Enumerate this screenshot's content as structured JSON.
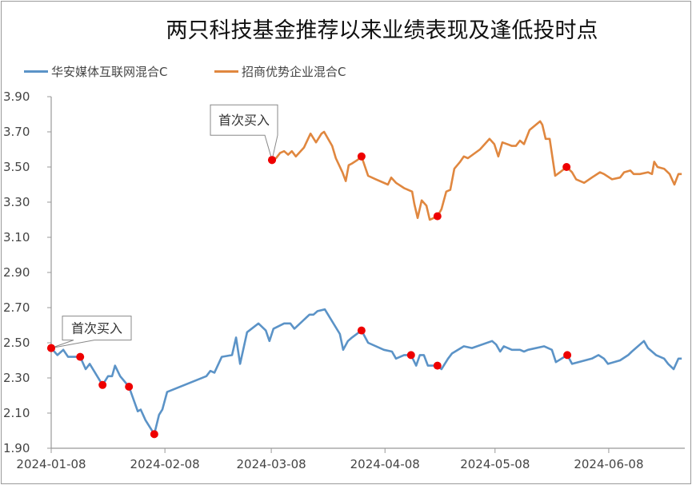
{
  "chart_data": {
    "type": "line",
    "title": "两只科技基金推荐以来业绩表现及逢低投时点",
    "x_unit": "days since 2024-01-08",
    "xlabel": "",
    "ylabel": "",
    "ylim": [
      1.9,
      3.9
    ],
    "yticks": [
      "1.90",
      "2.10",
      "2.30",
      "2.50",
      "2.70",
      "2.90",
      "3.10",
      "3.30",
      "3.50",
      "3.70",
      "3.90"
    ],
    "xticks": [
      {
        "day": 0,
        "label": "2024-01-08"
      },
      {
        "day": 31,
        "label": "2024-02-08"
      },
      {
        "day": 60,
        "label": "2024-03-08"
      },
      {
        "day": 91,
        "label": "2024-04-08"
      },
      {
        "day": 121,
        "label": "2024-05-08"
      },
      {
        "day": 152,
        "label": "2024-06-08"
      }
    ],
    "legend_position": "top-left",
    "grid": false,
    "series": [
      {
        "name": "华安媒体互联网混合C",
        "color": "#5b93c7",
        "points": [
          [
            0,
            2.47
          ],
          [
            1.7,
            2.43
          ],
          [
            3.3,
            2.46
          ],
          [
            4.6,
            2.42
          ],
          [
            7.9,
            2.42
          ],
          [
            9.4,
            2.35
          ],
          [
            10.5,
            2.38
          ],
          [
            14,
            2.26
          ],
          [
            15.5,
            2.31
          ],
          [
            16.6,
            2.31
          ],
          [
            17.4,
            2.37
          ],
          [
            18.8,
            2.31
          ],
          [
            21.2,
            2.25
          ],
          [
            23.6,
            2.11
          ],
          [
            24.4,
            2.12
          ],
          [
            25.7,
            2.06
          ],
          [
            28.1,
            1.98
          ],
          [
            29.4,
            2.09
          ],
          [
            30.3,
            2.12
          ],
          [
            31.6,
            2.22
          ],
          [
            42.3,
            2.31
          ],
          [
            43.4,
            2.34
          ],
          [
            44.5,
            2.33
          ],
          [
            46.5,
            2.42
          ],
          [
            49.3,
            2.43
          ],
          [
            50.4,
            2.53
          ],
          [
            51.5,
            2.38
          ],
          [
            53.4,
            2.56
          ],
          [
            56.5,
            2.61
          ],
          [
            58.5,
            2.57
          ],
          [
            59.5,
            2.51
          ],
          [
            60.6,
            2.58
          ],
          [
            63.5,
            2.61
          ],
          [
            65.2,
            2.61
          ],
          [
            66.3,
            2.58
          ],
          [
            70.4,
            2.66
          ],
          [
            71.5,
            2.66
          ],
          [
            72.6,
            2.68
          ],
          [
            74.6,
            2.69
          ],
          [
            78.7,
            2.55
          ],
          [
            79.6,
            2.46
          ],
          [
            80.9,
            2.51
          ],
          [
            82,
            2.53
          ],
          [
            84.6,
            2.57
          ],
          [
            86.4,
            2.5
          ],
          [
            90.7,
            2.46
          ],
          [
            92.9,
            2.45
          ],
          [
            94,
            2.41
          ],
          [
            96.2,
            2.43
          ],
          [
            98.1,
            2.43
          ],
          [
            99.5,
            2.37
          ],
          [
            100.5,
            2.43
          ],
          [
            101.6,
            2.43
          ],
          [
            102.7,
            2.37
          ],
          [
            105.3,
            2.37
          ],
          [
            106.4,
            2.35
          ],
          [
            108.2,
            2.41
          ],
          [
            109.3,
            2.44
          ],
          [
            112.5,
            2.48
          ],
          [
            114.7,
            2.47
          ],
          [
            120.2,
            2.51
          ],
          [
            121.3,
            2.49
          ],
          [
            122.4,
            2.45
          ],
          [
            123.4,
            2.48
          ],
          [
            125.6,
            2.46
          ],
          [
            127.8,
            2.46
          ],
          [
            128.9,
            2.45
          ],
          [
            130,
            2.46
          ],
          [
            134.4,
            2.48
          ],
          [
            136.5,
            2.46
          ],
          [
            137.6,
            2.39
          ],
          [
            140.7,
            2.43
          ],
          [
            142,
            2.38
          ],
          [
            147.4,
            2.41
          ],
          [
            149.2,
            2.43
          ],
          [
            150.7,
            2.41
          ],
          [
            151.8,
            2.38
          ],
          [
            155.1,
            2.4
          ],
          [
            157.3,
            2.43
          ],
          [
            158.3,
            2.45
          ],
          [
            161.6,
            2.51
          ],
          [
            162.7,
            2.47
          ],
          [
            164.9,
            2.43
          ],
          [
            167.1,
            2.41
          ],
          [
            168.2,
            2.38
          ],
          [
            169.7,
            2.35
          ],
          [
            171,
            2.41
          ],
          [
            171.9,
            2.41
          ]
        ],
        "buy_points": [
          [
            0,
            2.47
          ],
          [
            7.9,
            2.42
          ],
          [
            14,
            2.26
          ],
          [
            21.2,
            2.25
          ],
          [
            28.1,
            1.98
          ],
          [
            84.6,
            2.57
          ],
          [
            98.1,
            2.43
          ],
          [
            105.3,
            2.37
          ],
          [
            140.7,
            2.43
          ]
        ]
      },
      {
        "name": "招商优势企业混合C",
        "color": "#e0873f",
        "points": [
          [
            60.2,
            3.54
          ],
          [
            61.3,
            3.55
          ],
          [
            62.4,
            3.58
          ],
          [
            63.5,
            3.59
          ],
          [
            64.6,
            3.57
          ],
          [
            65.6,
            3.59
          ],
          [
            66.7,
            3.56
          ],
          [
            68.9,
            3.61
          ],
          [
            70.7,
            3.69
          ],
          [
            72.2,
            3.64
          ],
          [
            73.7,
            3.69
          ],
          [
            74.4,
            3.7
          ],
          [
            76.6,
            3.62
          ],
          [
            77.6,
            3.55
          ],
          [
            79.4,
            3.47
          ],
          [
            80.3,
            3.42
          ],
          [
            81.1,
            3.51
          ],
          [
            82,
            3.52
          ],
          [
            83.5,
            3.54
          ],
          [
            84.6,
            3.56
          ],
          [
            86.4,
            3.45
          ],
          [
            88.5,
            3.43
          ],
          [
            91.8,
            3.4
          ],
          [
            92.7,
            3.44
          ],
          [
            94,
            3.41
          ],
          [
            96.2,
            3.38
          ],
          [
            98.4,
            3.36
          ],
          [
            99,
            3.29
          ],
          [
            99.9,
            3.21
          ],
          [
            101,
            3.31
          ],
          [
            102.3,
            3.28
          ],
          [
            103.2,
            3.2
          ],
          [
            104.3,
            3.21
          ],
          [
            105.3,
            3.22
          ],
          [
            106.4,
            3.26
          ],
          [
            107.7,
            3.36
          ],
          [
            108.8,
            3.37
          ],
          [
            109.9,
            3.49
          ],
          [
            111.5,
            3.53
          ],
          [
            112.5,
            3.56
          ],
          [
            113.6,
            3.55
          ],
          [
            116.9,
            3.6
          ],
          [
            119.5,
            3.66
          ],
          [
            120.8,
            3.63
          ],
          [
            121.9,
            3.56
          ],
          [
            123,
            3.64
          ],
          [
            125.6,
            3.62
          ],
          [
            126.7,
            3.62
          ],
          [
            127.8,
            3.65
          ],
          [
            128.9,
            3.63
          ],
          [
            130.4,
            3.71
          ],
          [
            133.3,
            3.76
          ],
          [
            133.9,
            3.74
          ],
          [
            134.8,
            3.66
          ],
          [
            135.9,
            3.66
          ],
          [
            137.4,
            3.45
          ],
          [
            138.7,
            3.47
          ],
          [
            140.5,
            3.5
          ],
          [
            142,
            3.47
          ],
          [
            143.1,
            3.43
          ],
          [
            145.3,
            3.41
          ],
          [
            147.4,
            3.44
          ],
          [
            149.6,
            3.47
          ],
          [
            150.7,
            3.46
          ],
          [
            152.9,
            3.43
          ],
          [
            155.1,
            3.44
          ],
          [
            156.2,
            3.47
          ],
          [
            157.9,
            3.48
          ],
          [
            158.8,
            3.46
          ],
          [
            160.5,
            3.46
          ],
          [
            162.7,
            3.47
          ],
          [
            163.8,
            3.46
          ],
          [
            164.4,
            3.53
          ],
          [
            165.3,
            3.5
          ],
          [
            167.1,
            3.49
          ],
          [
            168.6,
            3.46
          ],
          [
            169.9,
            3.4
          ],
          [
            171,
            3.46
          ],
          [
            171.9,
            3.46
          ]
        ],
        "buy_points": [
          [
            60.2,
            3.54
          ],
          [
            84.6,
            3.56
          ],
          [
            105.3,
            3.22
          ],
          [
            140.5,
            3.5
          ]
        ]
      }
    ],
    "annotations": [
      {
        "text": "首次买入",
        "series": 0,
        "day": 0,
        "value": 2.47
      },
      {
        "text": "首次买入",
        "series": 1,
        "day": 60.2,
        "value": 3.54
      }
    ],
    "marker_color": "#ee0000"
  }
}
